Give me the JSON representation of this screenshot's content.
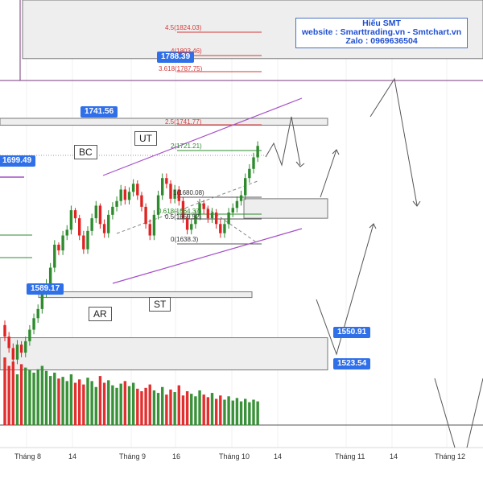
{
  "info": {
    "line1": "Hiếu SMT",
    "line2": "website : Smarttrading.vn - Smtchart.vn",
    "line3": "Zalo : 0969636504"
  },
  "labels": {
    "bc": "BC",
    "ut": "UT",
    "ar": "AR",
    "st": "ST"
  },
  "price_tags": [
    "1788.39",
    "1741.56",
    "1699.49",
    "1589.17",
    "1550.91",
    "1523.54"
  ],
  "fib_levels": [
    {
      "text": "4.5(1824.03)",
      "tone": "red"
    },
    {
      "text": "4(1803.46)",
      "tone": "red"
    },
    {
      "text": "3.618(1787.75)",
      "tone": "red"
    },
    {
      "text": "2.5(1741.77)",
      "tone": "red"
    },
    {
      "text": "2(1721.21)",
      "tone": "green"
    },
    {
      "text": "1(1680.08)",
      "tone": "normal"
    },
    {
      "text": "0.618(1664.37)",
      "tone": "green"
    },
    {
      "text": "0.5(1659.52)",
      "tone": "normal"
    },
    {
      "text": "0(1638.3)",
      "tone": "normal"
    }
  ],
  "x_ticks": [
    "Tháng 8",
    "14",
    "Tháng 9",
    "16",
    "Tháng 10",
    "14",
    "Tháng 11",
    "14",
    "Tháng 12"
  ],
  "colors": {
    "up": "#2e8b2e",
    "down": "#e02424",
    "zone_fill": "#eeeeee",
    "channel": "#a64fc9",
    "tag": "#2f6fe8"
  },
  "chart_data": {
    "type": "candlestick",
    "y_range": [
      1475,
      1845
    ],
    "series": {
      "open": [
        1562,
        1552,
        1542,
        1532,
        1545,
        1538,
        1548,
        1558,
        1568,
        1576,
        1590,
        1598,
        1612,
        1632,
        1627,
        1640,
        1645,
        1662,
        1655,
        1640,
        1628,
        1644,
        1655,
        1666,
        1650,
        1642,
        1658,
        1665,
        1670,
        1680,
        1671,
        1678,
        1685,
        1675,
        1665,
        1650,
        1640,
        1658,
        1675,
        1690,
        1685,
        1672,
        1680,
        1670,
        1655,
        1645,
        1650,
        1658,
        1668,
        1663,
        1655,
        1660,
        1650,
        1642,
        1650,
        1660,
        1664,
        1670,
        1675,
        1690,
        1698,
        1708
      ],
      "close": [
        1552,
        1542,
        1532,
        1545,
        1538,
        1548,
        1558,
        1568,
        1576,
        1590,
        1598,
        1612,
        1632,
        1627,
        1640,
        1645,
        1662,
        1655,
        1640,
        1628,
        1644,
        1655,
        1666,
        1650,
        1642,
        1658,
        1665,
        1670,
        1680,
        1671,
        1678,
        1685,
        1675,
        1665,
        1650,
        1640,
        1658,
        1675,
        1690,
        1685,
        1672,
        1680,
        1670,
        1655,
        1645,
        1650,
        1658,
        1668,
        1663,
        1655,
        1660,
        1650,
        1642,
        1650,
        1660,
        1664,
        1670,
        1675,
        1690,
        1698,
        1708,
        1718
      ],
      "high": [
        1566,
        1556,
        1546,
        1549,
        1548,
        1552,
        1562,
        1572,
        1580,
        1594,
        1602,
        1616,
        1636,
        1634,
        1644,
        1649,
        1666,
        1664,
        1658,
        1644,
        1648,
        1659,
        1670,
        1668,
        1654,
        1662,
        1669,
        1674,
        1684,
        1683,
        1682,
        1689,
        1688,
        1678,
        1668,
        1654,
        1662,
        1679,
        1694,
        1694,
        1688,
        1684,
        1683,
        1673,
        1659,
        1654,
        1662,
        1672,
        1671,
        1666,
        1664,
        1663,
        1654,
        1654,
        1664,
        1668,
        1674,
        1679,
        1694,
        1702,
        1712,
        1722
      ],
      "low": [
        1548,
        1538,
        1528,
        1528,
        1534,
        1534,
        1544,
        1554,
        1564,
        1572,
        1586,
        1594,
        1608,
        1623,
        1623,
        1636,
        1641,
        1651,
        1636,
        1624,
        1624,
        1640,
        1651,
        1646,
        1638,
        1638,
        1654,
        1661,
        1666,
        1667,
        1667,
        1674,
        1671,
        1661,
        1646,
        1636,
        1636,
        1654,
        1671,
        1681,
        1668,
        1668,
        1666,
        1651,
        1641,
        1641,
        1646,
        1654,
        1659,
        1651,
        1651,
        1646,
        1638,
        1638,
        1646,
        1656,
        1660,
        1666,
        1671,
        1686,
        1694,
        1704
      ],
      "volume": [
        80,
        70,
        75,
        60,
        72,
        68,
        65,
        62,
        66,
        70,
        64,
        58,
        62,
        55,
        57,
        52,
        60,
        50,
        54,
        48,
        56,
        52,
        45,
        58,
        50,
        53,
        47,
        44,
        49,
        52,
        46,
        50,
        43,
        40,
        44,
        48,
        41,
        38,
        45,
        36,
        42,
        39,
        47,
        35,
        40,
        37,
        34,
        41,
        36,
        33,
        38,
        31,
        35,
        30,
        34,
        29,
        32,
        28,
        31,
        27,
        30,
        28
      ]
    },
    "zones": [
      {
        "low": 1794,
        "high": 1845
      },
      {
        "low": 1736,
        "high": 1742
      },
      {
        "low": 1655,
        "high": 1672
      },
      {
        "low": 1586,
        "high": 1591
      },
      {
        "low": 1523,
        "high": 1551
      }
    ],
    "legend": "none"
  }
}
